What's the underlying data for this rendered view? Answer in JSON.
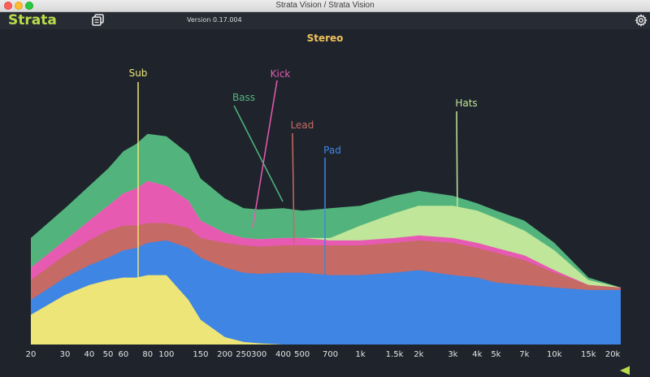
{
  "window": {
    "title": "Strata Vision / Strata Vision"
  },
  "toolbar": {
    "brand": "Strata",
    "version": "Version 0.17.004",
    "copy_icon": "duplicate-window-icon",
    "settings_icon": "gear-icon"
  },
  "view": {
    "channel": "Stereo"
  },
  "colors": {
    "background": "#1f242c",
    "Sub": "#ede577",
    "Pad": "#3f85e4",
    "Lead": "#c56a64",
    "Kick": "#e65ab2",
    "Hats": "#c0e69a",
    "Bass": "#52b47c"
  },
  "chart_data": {
    "type": "area",
    "stacked": true,
    "xscale": "log",
    "xlim": [
      20,
      22000
    ],
    "x_ticks": [
      "20",
      "30",
      "40",
      "50",
      "60",
      "80",
      "100",
      "150",
      "200",
      "250",
      "300",
      "400",
      "500",
      "700",
      "1k",
      "1.5k",
      "2k",
      "3k",
      "4k",
      "5k",
      "7k",
      "10k",
      "15k",
      "20k"
    ],
    "x": [
      20,
      30,
      40,
      50,
      60,
      70,
      80,
      100,
      130,
      150,
      200,
      250,
      300,
      400,
      500,
      700,
      1000,
      1500,
      2000,
      3000,
      4000,
      5000,
      7000,
      10000,
      15000,
      22000
    ],
    "series": [
      {
        "name": "Sub",
        "values": [
          12,
          20,
          24,
          26,
          27,
          27,
          28,
          28,
          18,
          10,
          3,
          1,
          0.5,
          0,
          0,
          0,
          0,
          0,
          0,
          0,
          0,
          0,
          0,
          0,
          0,
          0
        ]
      },
      {
        "name": "Pad",
        "values": [
          6,
          7,
          8,
          9,
          11,
          12,
          13,
          14,
          21,
          25,
          28,
          28,
          28,
          29,
          29,
          28,
          28,
          29,
          30,
          28,
          27,
          25,
          24,
          23,
          22,
          22
        ]
      },
      {
        "name": "Lead",
        "values": [
          8,
          9,
          10,
          11,
          10,
          9,
          8,
          7,
          8,
          8,
          10,
          11,
          11,
          11,
          11,
          12,
          12,
          12,
          12,
          13,
          12,
          12,
          10,
          6,
          2,
          1
        ]
      },
      {
        "name": "Kick",
        "values": [
          5,
          6,
          8,
          10,
          13,
          15,
          17,
          15,
          11,
          7,
          4,
          3,
          3,
          3,
          3,
          2,
          2,
          2,
          2,
          2,
          2,
          2,
          2,
          1,
          0,
          0
        ]
      },
      {
        "name": "Hats",
        "values": [
          0,
          0,
          0,
          0,
          0,
          0,
          0,
          0,
          0,
          0,
          0,
          0,
          0,
          0,
          0,
          1,
          6,
          10,
          12,
          13,
          13,
          12,
          10,
          8,
          2,
          0
        ]
      },
      {
        "name": "Bass",
        "values": [
          12,
          13,
          14,
          15,
          17,
          18,
          19,
          20,
          19,
          17,
          14,
          12,
          12,
          12,
          11,
          12,
          8,
          7,
          6,
          4,
          3,
          3,
          4,
          3,
          1,
          0
        ]
      }
    ],
    "labels": [
      {
        "name": "Sub",
        "text": "Sub"
      },
      {
        "name": "Bass",
        "text": "Bass"
      },
      {
        "name": "Kick",
        "text": "Kick"
      },
      {
        "name": "Lead",
        "text": "Lead"
      },
      {
        "name": "Pad",
        "text": "Pad"
      },
      {
        "name": "Hats",
        "text": "Hats"
      }
    ]
  }
}
